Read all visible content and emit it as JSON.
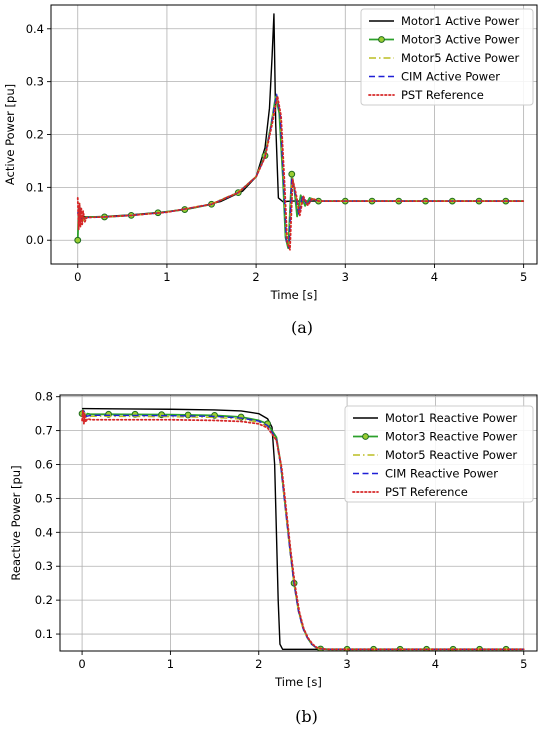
{
  "chart_data": [
    {
      "type": "line",
      "caption": "(a)",
      "xlabel": "Time [s]",
      "ylabel": "Active Power [pu]",
      "xlim": [
        -0.3,
        5.15
      ],
      "ylim": [
        -0.045,
        0.445
      ],
      "xticks": [
        0,
        1,
        2,
        3,
        4,
        5
      ],
      "yticks": [
        0.0,
        0.1,
        0.2,
        0.3,
        0.4
      ],
      "grid": true,
      "legend": "top-right",
      "series": [
        {
          "name": "Motor1 Active Power",
          "color": "#000000",
          "style": "solid",
          "x": [
            0,
            0.02,
            0.05,
            0.1,
            0.3,
            0.6,
            1.0,
            1.3,
            1.6,
            1.85,
            2.0,
            2.1,
            2.15,
            2.18,
            2.2,
            2.22,
            2.25,
            2.3,
            2.4,
            5.0
          ],
          "y": [
            0.05,
            0.048,
            0.045,
            0.044,
            0.045,
            0.048,
            0.054,
            0.061,
            0.073,
            0.093,
            0.12,
            0.175,
            0.25,
            0.35,
            0.428,
            0.22,
            0.08,
            0.073,
            0.074,
            0.074
          ]
        },
        {
          "name": "Motor3 Active Power",
          "color": "#2ca02c",
          "style": "solid-marker",
          "x": [
            0,
            0.01,
            0.03,
            0.06,
            0.1,
            0.3,
            0.6,
            0.9,
            1.2,
            1.5,
            1.8,
            2.0,
            2.1,
            2.17,
            2.22,
            2.26,
            2.3,
            2.33,
            2.36,
            2.4,
            2.43,
            2.46,
            2.5,
            2.55,
            2.6,
            2.7,
            3.0,
            5.0
          ],
          "y": [
            0.0,
            0.06,
            0.04,
            0.042,
            0.044,
            0.044,
            0.047,
            0.052,
            0.058,
            0.068,
            0.09,
            0.12,
            0.16,
            0.22,
            0.272,
            0.24,
            0.12,
            0.005,
            -0.015,
            0.125,
            0.095,
            0.045,
            0.085,
            0.065,
            0.08,
            0.074,
            0.074,
            0.074
          ],
          "markers_x": [
            0,
            0.3,
            0.6,
            0.9,
            1.2,
            1.5,
            1.8,
            2.1,
            2.4,
            2.7,
            3.0,
            3.3,
            3.6,
            3.9,
            4.2,
            4.5,
            4.8
          ],
          "markers_y": [
            0.0,
            0.044,
            0.047,
            0.052,
            0.058,
            0.068,
            0.09,
            0.16,
            0.125,
            0.074,
            0.074,
            0.074,
            0.074,
            0.074,
            0.074,
            0.074,
            0.074
          ]
        },
        {
          "name": "Motor5 Active Power",
          "color": "#bcbd22",
          "style": "dashdot",
          "x": [
            0,
            0.02,
            0.05,
            0.1,
            0.3,
            0.6,
            1.0,
            1.5,
            1.8,
            2.0,
            2.1,
            2.17,
            2.23,
            2.27,
            2.31,
            2.34,
            2.37,
            2.4,
            2.44,
            2.48,
            2.52,
            2.57,
            2.62,
            2.7,
            3.0,
            5.0
          ],
          "y": [
            0.05,
            0.07,
            0.035,
            0.043,
            0.044,
            0.047,
            0.053,
            0.069,
            0.091,
            0.121,
            0.16,
            0.22,
            0.275,
            0.24,
            0.11,
            0.0,
            -0.012,
            0.12,
            0.09,
            0.05,
            0.085,
            0.066,
            0.079,
            0.074,
            0.074,
            0.074
          ]
        },
        {
          "name": "CIM Active Power",
          "color": "#1f1fd6",
          "style": "dashed",
          "x": [
            0,
            0.02,
            0.05,
            0.1,
            0.3,
            0.6,
            1.0,
            1.5,
            1.8,
            2.0,
            2.1,
            2.17,
            2.23,
            2.27,
            2.31,
            2.34,
            2.37,
            2.4,
            2.44,
            2.48,
            2.52,
            2.57,
            2.62,
            2.7,
            3.0,
            5.0
          ],
          "y": [
            0.05,
            0.065,
            0.035,
            0.043,
            0.044,
            0.047,
            0.053,
            0.068,
            0.09,
            0.12,
            0.158,
            0.218,
            0.276,
            0.238,
            0.108,
            -0.002,
            -0.015,
            0.118,
            0.088,
            0.048,
            0.084,
            0.066,
            0.079,
            0.074,
            0.074,
            0.074
          ]
        },
        {
          "name": "PST Reference",
          "color": "#d62728",
          "style": "dotted",
          "x": [
            0,
            0.01,
            0.02,
            0.03,
            0.04,
            0.05,
            0.06,
            0.08,
            0.1,
            0.3,
            0.6,
            1.0,
            1.5,
            1.8,
            2.0,
            2.1,
            2.18,
            2.24,
            2.28,
            2.32,
            2.35,
            2.38,
            2.41,
            2.45,
            2.49,
            2.53,
            2.58,
            2.63,
            2.7,
            3.0,
            5.0
          ],
          "y": [
            0.08,
            0.02,
            0.07,
            0.025,
            0.06,
            0.03,
            0.055,
            0.035,
            0.043,
            0.044,
            0.047,
            0.053,
            0.068,
            0.09,
            0.12,
            0.157,
            0.22,
            0.272,
            0.235,
            0.105,
            -0.005,
            -0.018,
            0.115,
            0.086,
            0.047,
            0.083,
            0.066,
            0.079,
            0.074,
            0.074,
            0.074
          ]
        }
      ]
    },
    {
      "type": "line",
      "caption": "(b)",
      "xlabel": "Time [s]",
      "ylabel": "Reactive Power [pu]",
      "xlim": [
        -0.25,
        5.15
      ],
      "ylim": [
        0.05,
        0.805
      ],
      "xticks": [
        0,
        1,
        2,
        3,
        4,
        5
      ],
      "yticks": [
        0.1,
        0.2,
        0.3,
        0.4,
        0.5,
        0.6,
        0.7,
        0.8
      ],
      "grid": true,
      "legend": "top-right",
      "series": [
        {
          "name": "Motor1 Reactive Power",
          "color": "#000000",
          "style": "solid",
          "x": [
            0,
            0.5,
            1.0,
            1.5,
            1.8,
            2.0,
            2.1,
            2.15,
            2.18,
            2.2,
            2.22,
            2.24,
            2.27,
            2.3,
            5.0
          ],
          "y": [
            0.765,
            0.764,
            0.763,
            0.761,
            0.758,
            0.75,
            0.735,
            0.71,
            0.6,
            0.4,
            0.2,
            0.07,
            0.055,
            0.055,
            0.055
          ]
        },
        {
          "name": "Motor3 Reactive Power",
          "color": "#2ca02c",
          "style": "solid-marker",
          "x": [
            0,
            0.01,
            0.03,
            0.06,
            0.1,
            0.3,
            1.0,
            1.5,
            1.8,
            2.0,
            2.1,
            2.2,
            2.25,
            2.3,
            2.35,
            2.4,
            2.45,
            2.5,
            2.55,
            2.6,
            2.65,
            2.7,
            2.8,
            3.0,
            5.0
          ],
          "y": [
            0.75,
            0.76,
            0.74,
            0.75,
            0.748,
            0.748,
            0.747,
            0.745,
            0.74,
            0.73,
            0.72,
            0.68,
            0.6,
            0.48,
            0.36,
            0.25,
            0.17,
            0.12,
            0.09,
            0.07,
            0.06,
            0.056,
            0.055,
            0.055,
            0.055
          ],
          "markers_x": [
            0,
            0.3,
            0.6,
            0.9,
            1.2,
            1.5,
            1.8,
            2.1,
            2.4,
            2.7,
            3.0,
            3.3,
            3.6,
            3.9,
            4.2,
            4.5,
            4.8
          ],
          "markers_y": [
            0.75,
            0.748,
            0.748,
            0.747,
            0.746,
            0.745,
            0.74,
            0.72,
            0.25,
            0.056,
            0.055,
            0.055,
            0.055,
            0.055,
            0.055,
            0.055,
            0.055
          ]
        },
        {
          "name": "Motor5 Reactive Power",
          "color": "#bcbd22",
          "style": "dashdot",
          "x": [
            0,
            0.02,
            0.05,
            0.1,
            0.3,
            1.0,
            1.5,
            1.8,
            2.0,
            2.1,
            2.2,
            2.25,
            2.3,
            2.35,
            2.4,
            2.45,
            2.5,
            2.55,
            2.6,
            2.65,
            2.7,
            2.8,
            3.0,
            5.0
          ],
          "y": [
            0.74,
            0.755,
            0.74,
            0.742,
            0.742,
            0.741,
            0.739,
            0.734,
            0.725,
            0.712,
            0.67,
            0.59,
            0.47,
            0.35,
            0.245,
            0.165,
            0.115,
            0.088,
            0.07,
            0.06,
            0.056,
            0.055,
            0.055,
            0.055
          ]
        },
        {
          "name": "CIM Reactive Power",
          "color": "#1f1fd6",
          "style": "dashed",
          "x": [
            0,
            0.02,
            0.05,
            0.1,
            0.3,
            1.0,
            1.5,
            1.8,
            2.0,
            2.1,
            2.2,
            2.25,
            2.3,
            2.35,
            2.4,
            2.45,
            2.5,
            2.55,
            2.6,
            2.65,
            2.7,
            2.8,
            3.0,
            5.0
          ],
          "y": [
            0.745,
            0.758,
            0.742,
            0.745,
            0.745,
            0.744,
            0.742,
            0.737,
            0.728,
            0.715,
            0.675,
            0.595,
            0.475,
            0.355,
            0.248,
            0.167,
            0.117,
            0.089,
            0.07,
            0.06,
            0.056,
            0.055,
            0.055,
            0.055
          ]
        },
        {
          "name": "PST Reference",
          "color": "#d62728",
          "style": "dotted",
          "x": [
            0,
            0.01,
            0.02,
            0.03,
            0.04,
            0.06,
            0.1,
            0.3,
            1.0,
            1.5,
            1.8,
            2.0,
            2.1,
            2.2,
            2.26,
            2.31,
            2.36,
            2.41,
            2.46,
            2.51,
            2.56,
            2.61,
            2.66,
            2.72,
            2.8,
            3.0,
            5.0
          ],
          "y": [
            0.73,
            0.76,
            0.72,
            0.75,
            0.725,
            0.735,
            0.732,
            0.732,
            0.732,
            0.73,
            0.727,
            0.72,
            0.708,
            0.672,
            0.59,
            0.47,
            0.35,
            0.245,
            0.165,
            0.115,
            0.088,
            0.07,
            0.06,
            0.056,
            0.055,
            0.055,
            0.055
          ]
        }
      ]
    }
  ]
}
